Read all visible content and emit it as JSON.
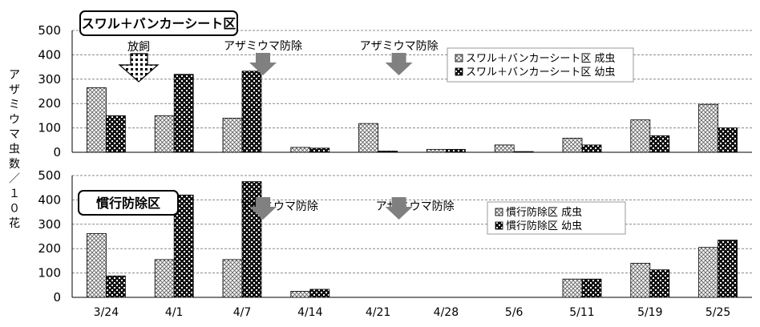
{
  "chart_data": [
    {
      "type": "bar",
      "title": "スワル＋バンカーシート区",
      "categories": [
        "3/24",
        "4/1",
        "4/7",
        "4/14",
        "4/21",
        "4/28",
        "5/6",
        "5/11",
        "5/19",
        "5/25"
      ],
      "ylim": [
        0,
        500
      ],
      "yticks": [
        "0",
        "100",
        "200",
        "300",
        "400",
        "500"
      ],
      "grid": true,
      "legend_position": "top-right",
      "series": [
        {
          "name": "スワル＋バンカーシート区 成虫",
          "pattern": "crosshatch",
          "values": [
            265,
            150,
            140,
            20,
            118,
            12,
            30,
            58,
            133,
            197
          ]
        },
        {
          "name": "スワル＋バンカーシート区 幼虫",
          "pattern": "checker",
          "values": [
            150,
            320,
            333,
            17,
            5,
            12,
            3,
            30,
            68,
            100
          ]
        }
      ],
      "annotations": [
        {
          "text": "放飼",
          "category": "3/24",
          "arrow": "release"
        },
        {
          "text": "アザミウマ防除",
          "category": "4/7",
          "arrow": "spray"
        },
        {
          "text": "アザミウマ防除",
          "category": "4/21",
          "arrow": "spray"
        }
      ]
    },
    {
      "type": "bar",
      "title": "慣行防除区",
      "categories": [
        "3/24",
        "4/1",
        "4/7",
        "4/14",
        "4/21",
        "4/28",
        "5/6",
        "5/11",
        "5/19",
        "5/25"
      ],
      "ylim": [
        0,
        500
      ],
      "yticks": [
        "0",
        "100",
        "200",
        "300",
        "400",
        "500"
      ],
      "grid": true,
      "legend_position": "top-right",
      "series": [
        {
          "name": "慣行防除区 成虫",
          "pattern": "crosshatch",
          "values": [
            262,
            155,
            155,
            25,
            0,
            0,
            0,
            75,
            140,
            205
          ]
        },
        {
          "name": "慣行防除区 幼虫",
          "pattern": "checker",
          "values": [
            88,
            420,
            475,
            33,
            0,
            0,
            0,
            75,
            113,
            235
          ]
        }
      ],
      "annotations": [
        {
          "text": "アザミウマ防除",
          "category": "4/7",
          "arrow": "spray"
        },
        {
          "text": "アザミウマ防除",
          "category": "4/21",
          "arrow": "spray"
        }
      ]
    }
  ],
  "ylabel": "アザミウマ虫数／１０花",
  "colors": {
    "bar_fill": "#ffffff",
    "stroke": "#000000",
    "spray_arrow": "#808080",
    "grid": "#888888"
  }
}
